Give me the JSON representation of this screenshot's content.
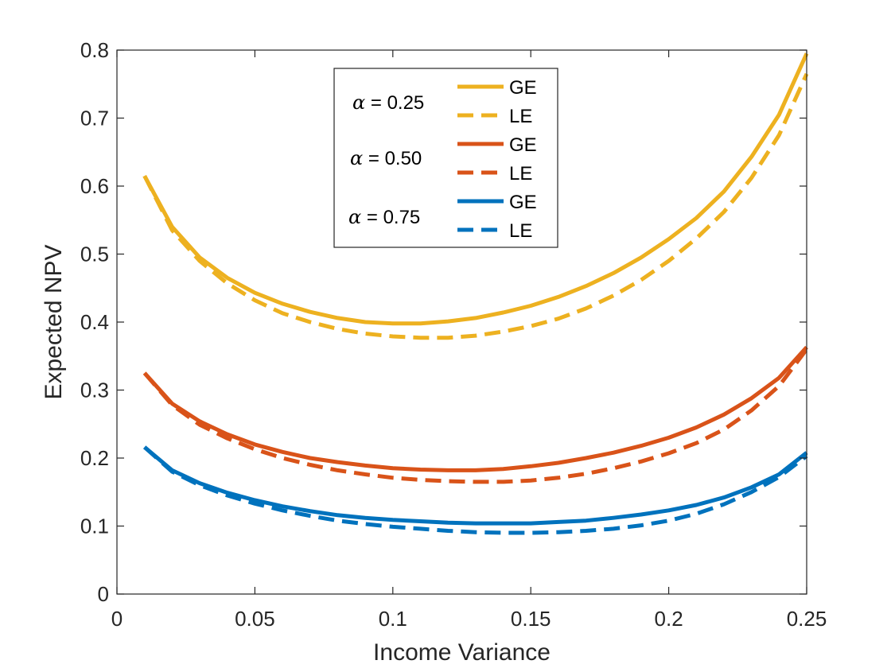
{
  "chart_data": {
    "type": "line",
    "title": "",
    "xlabel": "Income Variance",
    "ylabel": "Expected NPV",
    "xlim": [
      0,
      0.25
    ],
    "ylim": [
      0,
      0.8
    ],
    "xticks": [
      0,
      0.05,
      0.1,
      0.15,
      0.2,
      0.25
    ],
    "xtick_labels": [
      "0",
      "0.05",
      "0.1",
      "0.15",
      "0.2",
      "0.25"
    ],
    "yticks": [
      0,
      0.1,
      0.2,
      0.3,
      0.4,
      0.5,
      0.6,
      0.7,
      0.8
    ],
    "ytick_labels": [
      "0",
      "0.1",
      "0.2",
      "0.3",
      "0.4",
      "0.5",
      "0.6",
      "0.7",
      "0.8"
    ],
    "grid": false,
    "legend_position": "top-center",
    "x": [
      0.01,
      0.02,
      0.03,
      0.04,
      0.05,
      0.06,
      0.07,
      0.08,
      0.09,
      0.1,
      0.11,
      0.12,
      0.13,
      0.14,
      0.15,
      0.16,
      0.17,
      0.18,
      0.19,
      0.2,
      0.21,
      0.22,
      0.23,
      0.24,
      0.25
    ],
    "legend_groups": [
      {
        "label": "α = 0.25",
        "alpha_symbol": "α",
        "alpha_text": " = 0.25"
      },
      {
        "label": "α = 0.50",
        "alpha_symbol": "α",
        "alpha_text": " = 0.50"
      },
      {
        "label": "α = 0.75",
        "alpha_symbol": "α",
        "alpha_text": " = 0.75"
      }
    ],
    "series": [
      {
        "name": "GE",
        "group": "α = 0.25",
        "style": "solid",
        "color": "#EDB120",
        "values": [
          0.615,
          0.54,
          0.495,
          0.465,
          0.443,
          0.427,
          0.415,
          0.406,
          0.4,
          0.398,
          0.398,
          0.401,
          0.406,
          0.414,
          0.424,
          0.437,
          0.453,
          0.472,
          0.495,
          0.522,
          0.553,
          0.592,
          0.643,
          0.705,
          0.795
        ]
      },
      {
        "name": "LE",
        "group": "α = 0.25",
        "style": "dashed",
        "color": "#EDB120",
        "values": [
          0.615,
          0.535,
          0.49,
          0.457,
          0.432,
          0.413,
          0.4,
          0.39,
          0.383,
          0.379,
          0.377,
          0.377,
          0.38,
          0.386,
          0.394,
          0.405,
          0.42,
          0.439,
          0.462,
          0.49,
          0.523,
          0.562,
          0.612,
          0.675,
          0.765
        ]
      },
      {
        "name": "GE",
        "group": "α = 0.50",
        "style": "solid",
        "color": "#D95319",
        "values": [
          0.325,
          0.28,
          0.254,
          0.235,
          0.22,
          0.209,
          0.2,
          0.194,
          0.189,
          0.185,
          0.183,
          0.182,
          0.182,
          0.184,
          0.188,
          0.193,
          0.2,
          0.208,
          0.218,
          0.23,
          0.245,
          0.264,
          0.288,
          0.318,
          0.363
        ]
      },
      {
        "name": "LE",
        "group": "α = 0.50",
        "style": "dashed",
        "color": "#D95319",
        "values": [
          0.325,
          0.278,
          0.249,
          0.229,
          0.213,
          0.2,
          0.19,
          0.182,
          0.176,
          0.171,
          0.168,
          0.166,
          0.165,
          0.165,
          0.167,
          0.171,
          0.177,
          0.185,
          0.195,
          0.207,
          0.222,
          0.242,
          0.27,
          0.306,
          0.36
        ]
      },
      {
        "name": "GE",
        "group": "α = 0.75",
        "style": "solid",
        "color": "#0072BD",
        "values": [
          0.216,
          0.182,
          0.163,
          0.149,
          0.138,
          0.129,
          0.122,
          0.116,
          0.112,
          0.109,
          0.107,
          0.105,
          0.104,
          0.104,
          0.104,
          0.106,
          0.108,
          0.112,
          0.117,
          0.123,
          0.131,
          0.142,
          0.157,
          0.176,
          0.208
        ]
      },
      {
        "name": "LE",
        "group": "α = 0.75",
        "style": "dashed",
        "color": "#0072BD",
        "values": [
          0.216,
          0.18,
          0.16,
          0.145,
          0.133,
          0.123,
          0.115,
          0.108,
          0.103,
          0.099,
          0.096,
          0.093,
          0.091,
          0.09,
          0.09,
          0.091,
          0.093,
          0.096,
          0.101,
          0.108,
          0.118,
          0.132,
          0.15,
          0.172,
          0.203
        ]
      }
    ]
  }
}
